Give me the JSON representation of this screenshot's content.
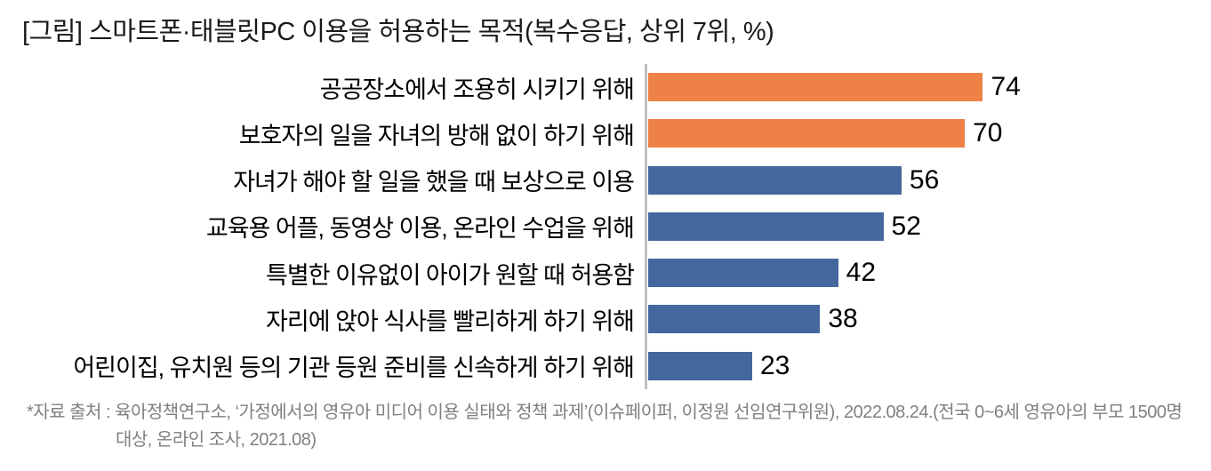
{
  "title": "[그림] 스마트폰·태블릿PC 이용을 허용하는 목적(복수응답, 상위 7위, %)",
  "chart_data": {
    "type": "bar",
    "orientation": "horizontal",
    "title": "[그림] 스마트폰·태블릿PC 이용을 허용하는 목적(복수응답, 상위 7위, %)",
    "categories": [
      "공공장소에서 조용히 시키기 위해",
      "보호자의 일을 자녀의 방해 없이 하기 위해",
      "자녀가 해야 할 일을 했을 때 보상으로 이용",
      "교육용 어플, 동영상 이용, 온라인 수업을 위해",
      "특별한 이유없이 아이가 원할 때 허용함",
      "자리에 앉아 식사를 빨리하게 하기 위해",
      "어린이집, 유치원 등의 기관 등원 준비를 신속하게 하기 위해"
    ],
    "values": [
      74,
      70,
      56,
      52,
      42,
      38,
      23
    ],
    "bar_colors": [
      "#ED8146",
      "#ED8146",
      "#44689E",
      "#44689E",
      "#44689E",
      "#44689E",
      "#44689E"
    ],
    "highlight_color": "#ED8146",
    "default_color": "#44689E",
    "axis_line_color": "#BFBFBF",
    "xlim": [
      0,
      80
    ],
    "xlabel": "",
    "ylabel": "",
    "grid": false,
    "legend": "none",
    "data_labels": true
  },
  "footnote": {
    "line1": "*자료 출처 : 육아정책연구소, ‘가정에서의 영유아 미디어 이용 실태와 정책 과제’(이슈페이퍼, 이정원 선임연구위원), 2022.08.24.(전국 0~6세 영유아의 부모 1500명",
    "line2": "대상, 온라인 조사, 2021.08)"
  }
}
